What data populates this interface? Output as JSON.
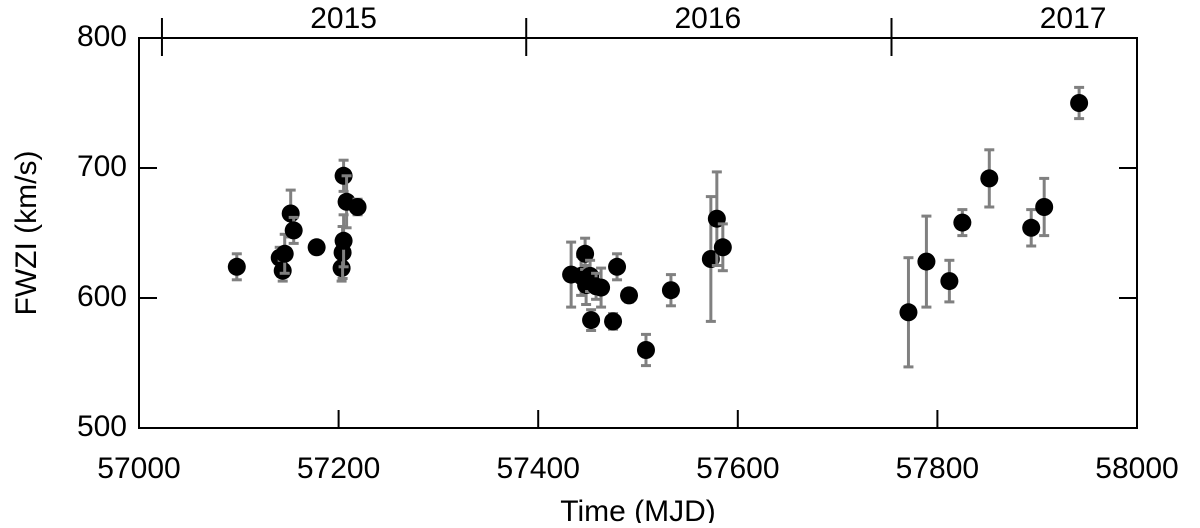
{
  "chart_data": {
    "type": "scatter",
    "x_label": "Time (MJD)",
    "y_label": "FWZI (km/s)",
    "xlim": [
      57000,
      58000
    ],
    "xticks": [
      57000,
      57200,
      57400,
      57600,
      57800,
      58000
    ],
    "ylim": [
      500,
      800
    ],
    "yticks": [
      500,
      600,
      700,
      800
    ],
    "top_axis": {
      "ticks": [
        57023,
        57388,
        57754
      ],
      "labels": [
        {
          "value": 57205,
          "label": "2015"
        },
        {
          "value": 57570,
          "label": "2016"
        },
        {
          "value": 57936,
          "label": "2017"
        }
      ]
    },
    "color": "#000000",
    "error_color": "#808080",
    "x": [
      57098,
      57141,
      57144,
      57146,
      57152,
      57155,
      57178,
      57203,
      57204,
      57205,
      57205,
      57208,
      57219,
      57433,
      57443,
      57447,
      57448,
      57452,
      57453,
      57458,
      57463,
      57475,
      57479,
      57491,
      57508,
      57533,
      57573,
      57579,
      57585,
      57771,
      57789,
      57812,
      57825,
      57852,
      57894,
      57907,
      57942
    ],
    "values": [
      624,
      631,
      621,
      634,
      665,
      652,
      639,
      623,
      635,
      644,
      694,
      674,
      670,
      618,
      617,
      634,
      610,
      617,
      583,
      609,
      608,
      582,
      624,
      602,
      560,
      606,
      630,
      661,
      639,
      589,
      628,
      613,
      658,
      692,
      654,
      670,
      750
    ],
    "errors": [
      10,
      8,
      8,
      15,
      18,
      10,
      5,
      10,
      20,
      20,
      12,
      20,
      6,
      25,
      15,
      12,
      15,
      12,
      8,
      10,
      15,
      6,
      10,
      5,
      12,
      12,
      48,
      36,
      18,
      42,
      35,
      16,
      10,
      22,
      14,
      22,
      12
    ]
  }
}
